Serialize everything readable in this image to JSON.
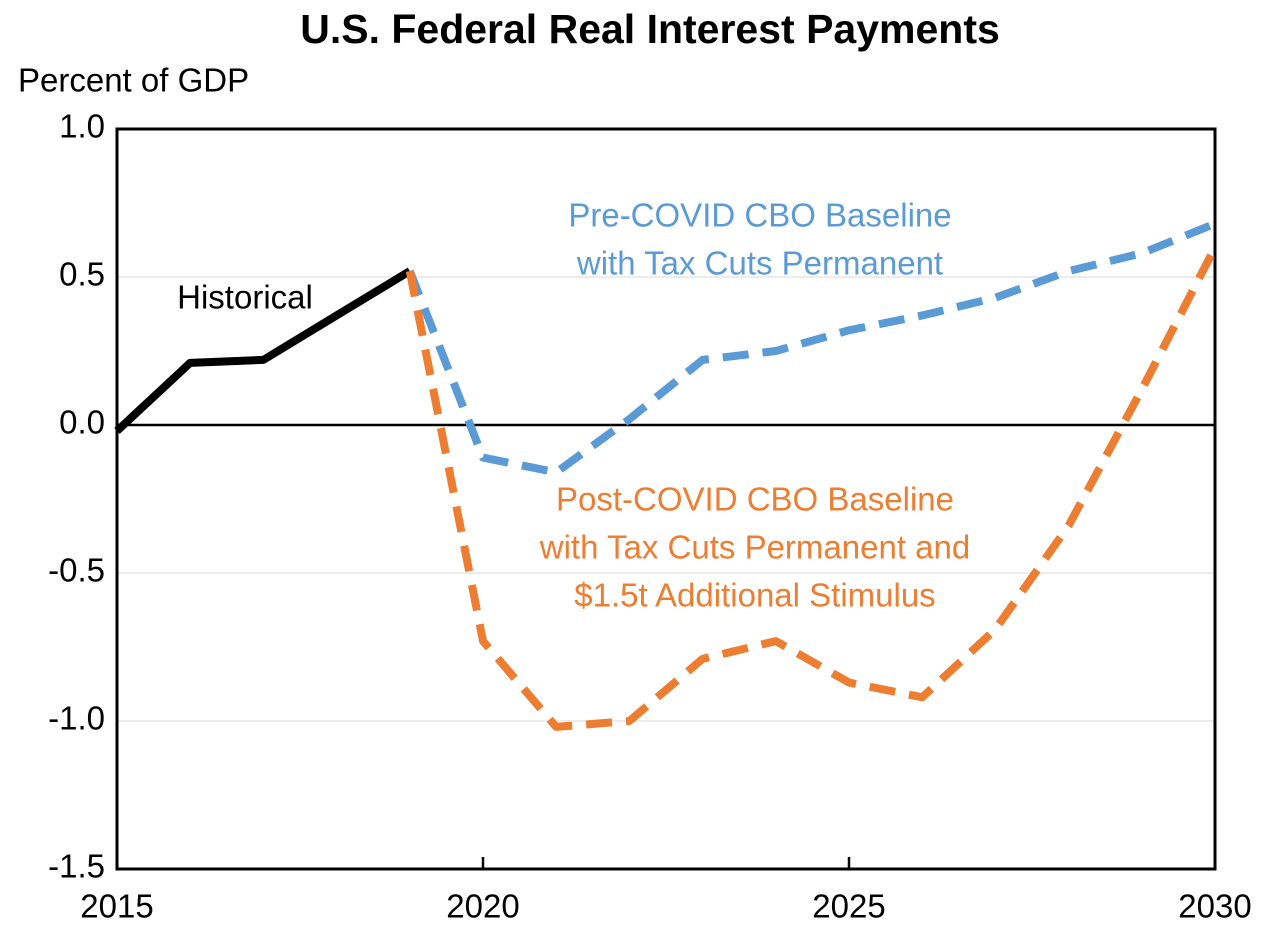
{
  "chart_data": {
    "type": "line",
    "title": "U.S. Federal Real Interest Payments",
    "y_label": "Percent of GDP",
    "x": [
      2015,
      2016,
      2017,
      2018,
      2019,
      2020,
      2021,
      2022,
      2023,
      2024,
      2025,
      2026,
      2027,
      2028,
      2029,
      2030
    ],
    "series": [
      {
        "name": "Historical",
        "color": "#000000",
        "dashed": false,
        "values": [
          -0.02,
          0.21,
          0.22,
          0.37,
          0.52,
          null,
          null,
          null,
          null,
          null,
          null,
          null,
          null,
          null,
          null,
          null
        ]
      },
      {
        "name": "Pre-COVID CBO Baseline with Tax Cuts Permanent",
        "color": "#5b9bd5",
        "dashed": true,
        "values": [
          null,
          null,
          null,
          null,
          0.52,
          -0.11,
          -0.16,
          0.02,
          0.22,
          0.25,
          0.32,
          0.37,
          0.43,
          0.52,
          0.58,
          0.68
        ]
      },
      {
        "name": "Post-COVID CBO Baseline with Tax Cuts Permanent and $1.5t Additional Stimulus",
        "color": "#ed7d31",
        "dashed": true,
        "values": [
          null,
          null,
          null,
          null,
          0.52,
          -0.73,
          -1.02,
          -1.0,
          -0.79,
          -0.73,
          -0.87,
          -0.92,
          -0.69,
          -0.34,
          0.12,
          0.6
        ]
      }
    ],
    "annotations": [
      {
        "lines": [
          "Historical"
        ],
        "color": "#000000"
      },
      {
        "lines": [
          "Pre-COVID CBO Baseline",
          "with Tax Cuts Permanent"
        ],
        "color": "#5b9bd5"
      },
      {
        "lines": [
          "Post-COVID CBO Baseline",
          "with Tax Cuts Permanent and",
          "$1.5t Additional Stimulus"
        ],
        "color": "#ed7d31"
      }
    ],
    "xlim": [
      2015,
      2030
    ],
    "xticks": [
      2015,
      2020,
      2025,
      2030
    ],
    "ylim": [
      -1.5,
      1.0
    ],
    "yticks": [
      {
        "value": -1.5,
        "label": "-1.5"
      },
      {
        "value": -1.0,
        "label": "-1.0"
      },
      {
        "value": -0.5,
        "label": "-0.5"
      },
      {
        "value": 0,
        "label": "0.0"
      },
      {
        "value": 0.5,
        "label": "0.5"
      },
      {
        "value": 1.0,
        "label": "1.0"
      }
    ],
    "grid": true
  }
}
